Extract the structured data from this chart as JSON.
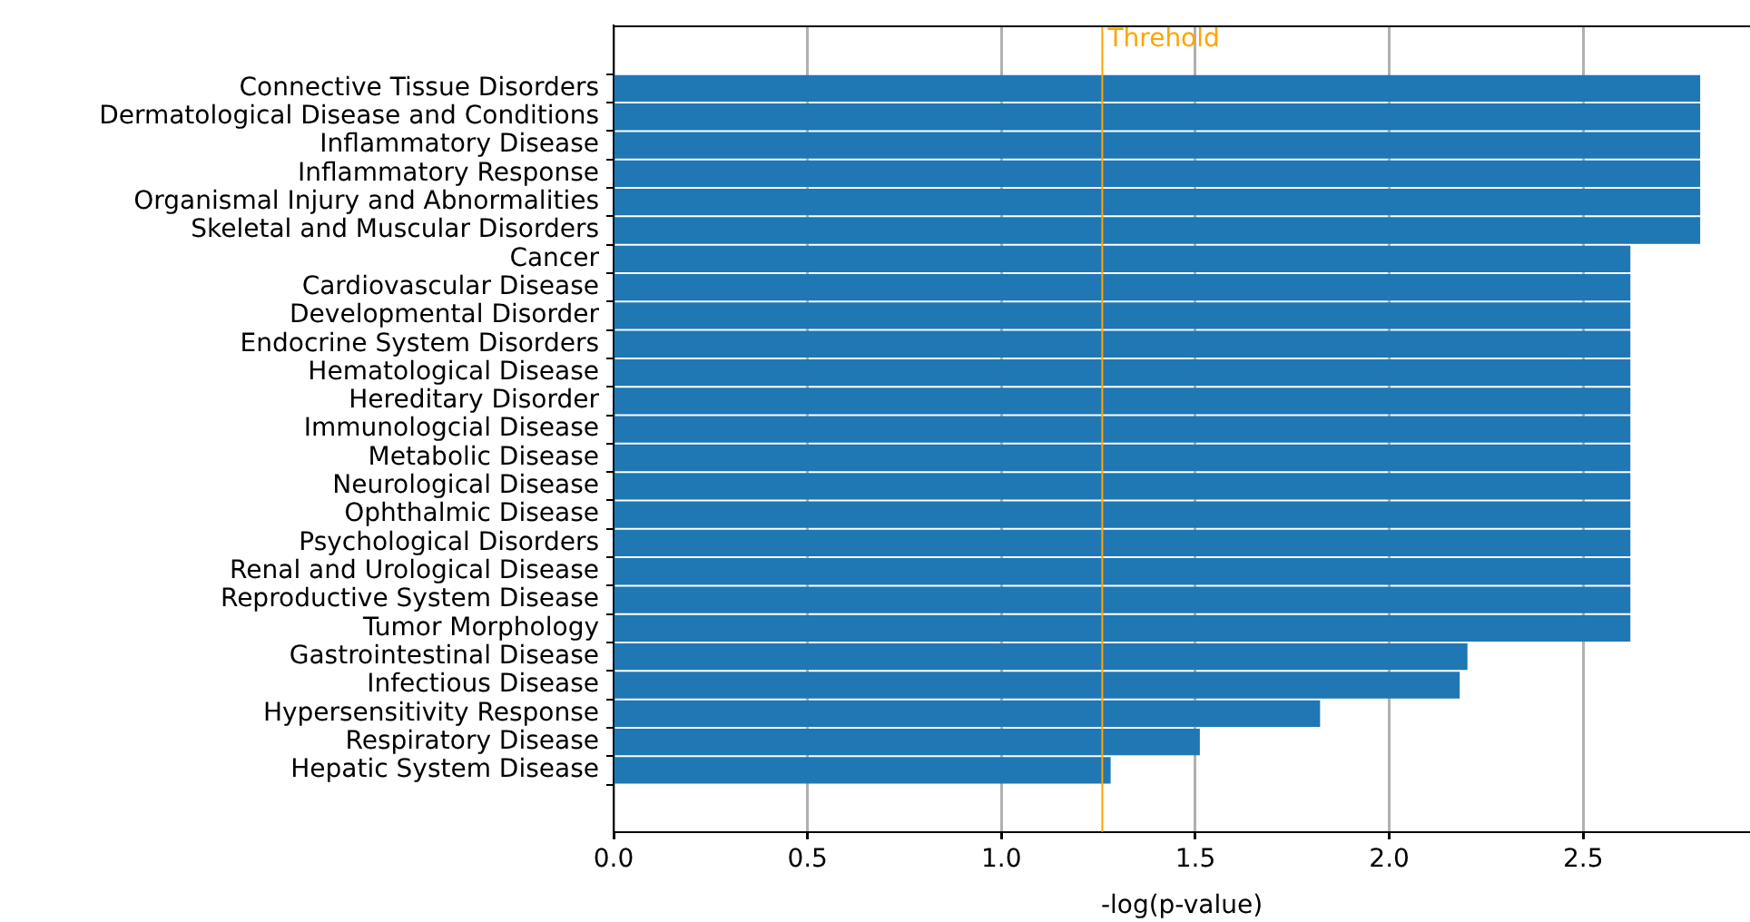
{
  "chart_data": {
    "type": "bar",
    "orientation": "horizontal",
    "xlabel": "-log(p-value)",
    "categories": [
      "Connective Tissue Disorders",
      "Dermatological Disease and Conditions",
      "Inflammatory Disease",
      "Inflammatory Response",
      "Organismal Injury and Abnormalities",
      "Skeletal and Muscular Disorders",
      "Cancer",
      "Cardiovascular Disease",
      "Developmental Disorder",
      "Endocrine System Disorders",
      "Hematological Disease",
      "Hereditary Disorder",
      "Immunologcial Disease",
      "Metabolic Disease",
      "Neurological Disease",
      "Ophthalmic Disease",
      "Psychological Disorders",
      "Renal and Urological Disease",
      "Reproductive System Disease",
      "Tumor Morphology",
      "Gastrointestinal Disease",
      "Infectious Disease",
      "Hypersensitivity Response",
      "Respiratory Disease",
      "Hepatic System Disease"
    ],
    "values": [
      2.8,
      2.8,
      2.8,
      2.8,
      2.8,
      2.8,
      2.62,
      2.62,
      2.62,
      2.62,
      2.62,
      2.62,
      2.62,
      2.62,
      2.62,
      2.62,
      2.62,
      2.62,
      2.62,
      2.62,
      2.2,
      2.18,
      1.82,
      1.51,
      1.28
    ],
    "color": "#1f77b4",
    "xlim": [
      0,
      2.93
    ],
    "xticks": [
      {
        "value": 0,
        "label": "0.0"
      },
      {
        "value": 0.5,
        "label": "0.5"
      },
      {
        "value": 1.0,
        "label": "1.0"
      },
      {
        "value": 1.5,
        "label": "1.5"
      },
      {
        "value": 2.0,
        "label": "2.0"
      },
      {
        "value": 2.5,
        "label": "2.5"
      }
    ],
    "ref_lines": [
      {
        "axis": "x",
        "value": 1.26,
        "label": "Threhold",
        "color": "#ffa500"
      }
    ],
    "grid": "x",
    "legend": false
  }
}
